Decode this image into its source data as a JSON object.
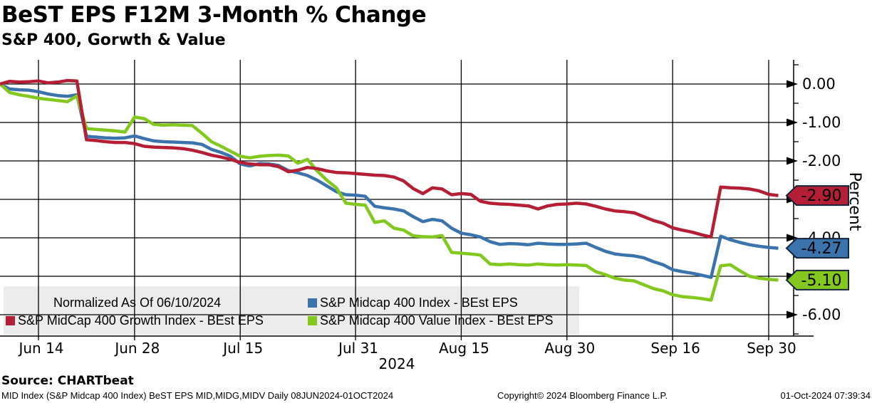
{
  "header": {
    "title": "BeST EPS F12M 3-Month % Change",
    "subtitle": "S&P 400, Gorwth & Value"
  },
  "chart_data": {
    "type": "line",
    "title": "BeST EPS F12M 3-Month % Change",
    "subtitle": "S&P 400, Gorwth & Value",
    "normalized_note": "Normalized As Of 06/10/2024",
    "grid": true,
    "x_axis": {
      "year_label": "2024",
      "unit": "weekday index from 06/10/2024",
      "ticks": [
        {
          "label": "Jun 14",
          "td": 4
        },
        {
          "label": "Jun 28",
          "td": 14
        },
        {
          "label": "Jul 15",
          "td": 25
        },
        {
          "label": "Jul 31",
          "td": 37
        },
        {
          "label": "Aug 15",
          "td": 48
        },
        {
          "label": "Aug 30",
          "td": 59
        },
        {
          "label": "Sep 16",
          "td": 70
        },
        {
          "label": "Sep 30",
          "td": 80
        }
      ]
    },
    "y_axis": {
      "label": "Percent",
      "side": "right",
      "ylim": [
        0.63,
        -6.57
      ],
      "minor_tick_step": 0.5,
      "ticks": [
        {
          "label": "0.00",
          "value": 0
        },
        {
          "label": "-1.00",
          "value": -1
        },
        {
          "label": "-2.00",
          "value": -2
        },
        {
          "label": "-3.00",
          "value": -3
        },
        {
          "label": "-4.00",
          "value": -4
        },
        {
          "label": "-5.00",
          "value": -5
        },
        {
          "label": "-6.00",
          "value": -6
        }
      ]
    },
    "series": [
      {
        "name": "S&P Midcap 400 Index - BEst EPS",
        "color": "#3b74ad",
        "badge": {
          "label": "-4.27",
          "value": -4.27,
          "text_color": "#ffffff"
        },
        "points": [
          [
            0,
            0.0
          ],
          [
            1,
            -0.13
          ],
          [
            2,
            -0.15
          ],
          [
            3,
            -0.16
          ],
          [
            4,
            -0.2
          ],
          [
            5,
            -0.26
          ],
          [
            6,
            -0.3
          ],
          [
            7,
            -0.32
          ],
          [
            8,
            -0.28
          ],
          [
            9,
            -1.36
          ],
          [
            10,
            -1.38
          ],
          [
            11,
            -1.4
          ],
          [
            12,
            -1.41
          ],
          [
            13,
            -1.4
          ],
          [
            14,
            -1.35
          ],
          [
            15,
            -1.42
          ],
          [
            16,
            -1.48
          ],
          [
            17,
            -1.5
          ],
          [
            18,
            -1.51
          ],
          [
            19,
            -1.52
          ],
          [
            20,
            -1.53
          ],
          [
            21,
            -1.57
          ],
          [
            22,
            -1.7
          ],
          [
            23,
            -1.78
          ],
          [
            24,
            -1.88
          ],
          [
            25,
            -2.08
          ],
          [
            26,
            -2.13
          ],
          [
            27,
            -2.07
          ],
          [
            28,
            -2.08
          ],
          [
            29,
            -2.12
          ],
          [
            30,
            -2.25
          ],
          [
            31,
            -2.31
          ],
          [
            32,
            -2.38
          ],
          [
            33,
            -2.5
          ],
          [
            34,
            -2.65
          ],
          [
            35,
            -2.8
          ],
          [
            36,
            -2.88
          ],
          [
            37,
            -2.89
          ],
          [
            38,
            -2.92
          ],
          [
            39,
            -3.18
          ],
          [
            40,
            -3.22
          ],
          [
            41,
            -3.25
          ],
          [
            42,
            -3.3
          ],
          [
            43,
            -3.45
          ],
          [
            44,
            -3.58
          ],
          [
            45,
            -3.52
          ],
          [
            46,
            -3.56
          ],
          [
            47,
            -3.75
          ],
          [
            48,
            -3.88
          ],
          [
            49,
            -3.92
          ],
          [
            50,
            -3.98
          ],
          [
            51,
            -4.1
          ],
          [
            52,
            -4.17
          ],
          [
            53,
            -4.15
          ],
          [
            54,
            -4.16
          ],
          [
            55,
            -4.18
          ],
          [
            56,
            -4.14
          ],
          [
            57,
            -4.16
          ],
          [
            58,
            -4.17
          ],
          [
            59,
            -4.17
          ],
          [
            60,
            -4.16
          ],
          [
            61,
            -4.14
          ],
          [
            62,
            -4.25
          ],
          [
            63,
            -4.35
          ],
          [
            64,
            -4.42
          ],
          [
            65,
            -4.45
          ],
          [
            66,
            -4.47
          ],
          [
            67,
            -4.52
          ],
          [
            68,
            -4.62
          ],
          [
            69,
            -4.7
          ],
          [
            70,
            -4.83
          ],
          [
            71,
            -4.88
          ],
          [
            72,
            -4.92
          ],
          [
            73,
            -4.97
          ],
          [
            74,
            -5.03
          ],
          [
            75,
            -3.96
          ],
          [
            76,
            -4.05
          ],
          [
            77,
            -4.12
          ],
          [
            78,
            -4.18
          ],
          [
            79,
            -4.22
          ],
          [
            80,
            -4.25
          ],
          [
            81,
            -4.27
          ]
        ]
      },
      {
        "name": "S&P MidCap 400 Growth Index - BEst EPS",
        "color": "#b51f35",
        "badge": {
          "label": "-2.90",
          "value": -2.9,
          "text_color": "#ffffff"
        },
        "points": [
          [
            0,
            0.0
          ],
          [
            1,
            0.07
          ],
          [
            2,
            0.05
          ],
          [
            3,
            0.06
          ],
          [
            4,
            0.08
          ],
          [
            5,
            0.03
          ],
          [
            6,
            0.05
          ],
          [
            7,
            0.09
          ],
          [
            8,
            0.08
          ],
          [
            9,
            -1.45
          ],
          [
            10,
            -1.47
          ],
          [
            11,
            -1.5
          ],
          [
            12,
            -1.52
          ],
          [
            13,
            -1.52
          ],
          [
            14,
            -1.55
          ],
          [
            15,
            -1.62
          ],
          [
            16,
            -1.64
          ],
          [
            17,
            -1.65
          ],
          [
            18,
            -1.66
          ],
          [
            19,
            -1.68
          ],
          [
            20,
            -1.72
          ],
          [
            21,
            -1.78
          ],
          [
            22,
            -1.85
          ],
          [
            23,
            -1.9
          ],
          [
            24,
            -1.96
          ],
          [
            25,
            -2.04
          ],
          [
            26,
            -2.08
          ],
          [
            27,
            -2.1
          ],
          [
            28,
            -2.1
          ],
          [
            29,
            -2.15
          ],
          [
            30,
            -2.28
          ],
          [
            31,
            -2.24
          ],
          [
            32,
            -2.17
          ],
          [
            33,
            -2.2
          ],
          [
            34,
            -2.26
          ],
          [
            35,
            -2.3
          ],
          [
            36,
            -2.31
          ],
          [
            37,
            -2.33
          ],
          [
            38,
            -2.35
          ],
          [
            39,
            -2.37
          ],
          [
            40,
            -2.38
          ],
          [
            41,
            -2.42
          ],
          [
            42,
            -2.52
          ],
          [
            43,
            -2.72
          ],
          [
            44,
            -2.85
          ],
          [
            45,
            -2.7
          ],
          [
            46,
            -2.73
          ],
          [
            47,
            -2.88
          ],
          [
            48,
            -2.85
          ],
          [
            49,
            -2.87
          ],
          [
            50,
            -3.05
          ],
          [
            51,
            -3.1
          ],
          [
            52,
            -3.12
          ],
          [
            53,
            -3.13
          ],
          [
            54,
            -3.15
          ],
          [
            55,
            -3.17
          ],
          [
            56,
            -3.25
          ],
          [
            57,
            -3.17
          ],
          [
            58,
            -3.13
          ],
          [
            59,
            -3.12
          ],
          [
            60,
            -3.1
          ],
          [
            61,
            -3.12
          ],
          [
            62,
            -3.18
          ],
          [
            63,
            -3.25
          ],
          [
            64,
            -3.3
          ],
          [
            65,
            -3.32
          ],
          [
            66,
            -3.35
          ],
          [
            67,
            -3.45
          ],
          [
            68,
            -3.55
          ],
          [
            69,
            -3.62
          ],
          [
            70,
            -3.74
          ],
          [
            71,
            -3.8
          ],
          [
            72,
            -3.85
          ],
          [
            73,
            -3.92
          ],
          [
            74,
            -3.98
          ],
          [
            75,
            -2.68
          ],
          [
            76,
            -2.7
          ],
          [
            77,
            -2.71
          ],
          [
            78,
            -2.73
          ],
          [
            79,
            -2.78
          ],
          [
            80,
            -2.87
          ],
          [
            81,
            -2.9
          ]
        ]
      },
      {
        "name": "S&P Midcap 400 Value Index - BEst EPS",
        "color": "#83c81e",
        "badge": {
          "label": "-5.10",
          "value": -5.1,
          "text_color": "#000000"
        },
        "points": [
          [
            0,
            0.0
          ],
          [
            1,
            -0.22
          ],
          [
            2,
            -0.28
          ],
          [
            3,
            -0.32
          ],
          [
            4,
            -0.37
          ],
          [
            5,
            -0.4
          ],
          [
            6,
            -0.43
          ],
          [
            7,
            -0.46
          ],
          [
            8,
            -0.31
          ],
          [
            9,
            -1.16
          ],
          [
            10,
            -1.18
          ],
          [
            11,
            -1.2
          ],
          [
            12,
            -1.22
          ],
          [
            13,
            -1.25
          ],
          [
            14,
            -0.86
          ],
          [
            15,
            -0.9
          ],
          [
            16,
            -1.05
          ],
          [
            17,
            -1.07
          ],
          [
            18,
            -1.06
          ],
          [
            19,
            -1.07
          ],
          [
            20,
            -1.08
          ],
          [
            21,
            -1.28
          ],
          [
            22,
            -1.5
          ],
          [
            23,
            -1.62
          ],
          [
            24,
            -1.75
          ],
          [
            25,
            -1.88
          ],
          [
            26,
            -1.92
          ],
          [
            27,
            -1.88
          ],
          [
            28,
            -1.86
          ],
          [
            29,
            -1.85
          ],
          [
            30,
            -1.87
          ],
          [
            31,
            -2.06
          ],
          [
            32,
            -1.96
          ],
          [
            33,
            -2.26
          ],
          [
            34,
            -2.5
          ],
          [
            35,
            -2.7
          ],
          [
            36,
            -3.1
          ],
          [
            37,
            -3.13
          ],
          [
            38,
            -3.15
          ],
          [
            39,
            -3.6
          ],
          [
            40,
            -3.56
          ],
          [
            41,
            -3.75
          ],
          [
            42,
            -3.8
          ],
          [
            43,
            -3.95
          ],
          [
            44,
            -3.97
          ],
          [
            45,
            -3.98
          ],
          [
            46,
            -3.94
          ],
          [
            47,
            -4.38
          ],
          [
            48,
            -4.4
          ],
          [
            49,
            -4.42
          ],
          [
            50,
            -4.45
          ],
          [
            51,
            -4.68
          ],
          [
            52,
            -4.7
          ],
          [
            53,
            -4.68
          ],
          [
            54,
            -4.7
          ],
          [
            55,
            -4.71
          ],
          [
            56,
            -4.68
          ],
          [
            57,
            -4.7
          ],
          [
            58,
            -4.71
          ],
          [
            59,
            -4.7
          ],
          [
            60,
            -4.71
          ],
          [
            61,
            -4.72
          ],
          [
            62,
            -4.88
          ],
          [
            63,
            -4.96
          ],
          [
            64,
            -5.05
          ],
          [
            65,
            -5.1
          ],
          [
            66,
            -5.12
          ],
          [
            67,
            -5.22
          ],
          [
            68,
            -5.32
          ],
          [
            69,
            -5.38
          ],
          [
            70,
            -5.48
          ],
          [
            71,
            -5.53
          ],
          [
            72,
            -5.55
          ],
          [
            73,
            -5.58
          ],
          [
            74,
            -5.62
          ],
          [
            75,
            -4.73
          ],
          [
            76,
            -4.7
          ],
          [
            77,
            -4.86
          ],
          [
            78,
            -5.0
          ],
          [
            79,
            -5.05
          ],
          [
            80,
            -5.08
          ],
          [
            81,
            -5.1
          ]
        ]
      }
    ]
  },
  "legend": {
    "background_color": "#ececec"
  },
  "footer": {
    "source": "Source: CHARTbeat",
    "description": "MID Index (S&P Midcap 400 Index) BeST EPS MID,MIDG,MIDV  Daily 08JUN2024-01OCT2024",
    "copyright": "Copyright© 2024 Bloomberg Finance L.P.",
    "timestamp": "01-Oct-2024 07:39:34"
  }
}
